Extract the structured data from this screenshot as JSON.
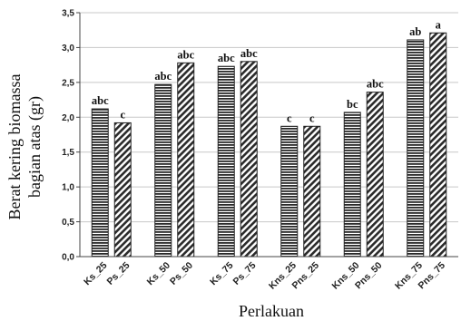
{
  "chart_data": {
    "type": "bar",
    "title": "",
    "xlabel": "Perlakuan",
    "ylabel_lines": [
      "Berat kering biomassa",
      "bagian atas (gr)"
    ],
    "ylim": [
      0,
      3.5
    ],
    "yticks": [
      "0,0",
      "0,5",
      "1,0",
      "1,5",
      "2,0",
      "2,5",
      "3,0",
      "3,5"
    ],
    "categories": [
      "Ks_25",
      "Ps_25",
      "Ks_50",
      "Ps_50",
      "Ks_75",
      "Ps_75",
      "Kns_25",
      "Pns_25",
      "Kns_50",
      "Pns_50",
      "Kns_75",
      "Pns_75"
    ],
    "values": [
      2.12,
      1.92,
      2.47,
      2.78,
      2.73,
      2.8,
      1.87,
      1.87,
      2.07,
      2.36,
      3.11,
      3.21
    ],
    "letters": [
      "abc",
      "c",
      "abc",
      "abc",
      "abc",
      "abc",
      "c",
      "c",
      "bc",
      "abc",
      "ab",
      "a"
    ],
    "patterns": [
      "horizontal",
      "diagonal",
      "horizontal",
      "diagonal",
      "horizontal",
      "diagonal",
      "horizontal",
      "diagonal",
      "horizontal",
      "diagonal",
      "horizontal",
      "diagonal"
    ],
    "grid": true,
    "colors": {
      "bar_fill": "#ffffff",
      "bar_stroke": "#222222",
      "hatch": "#2a2a2a",
      "grid": "#c8c8c8"
    }
  }
}
